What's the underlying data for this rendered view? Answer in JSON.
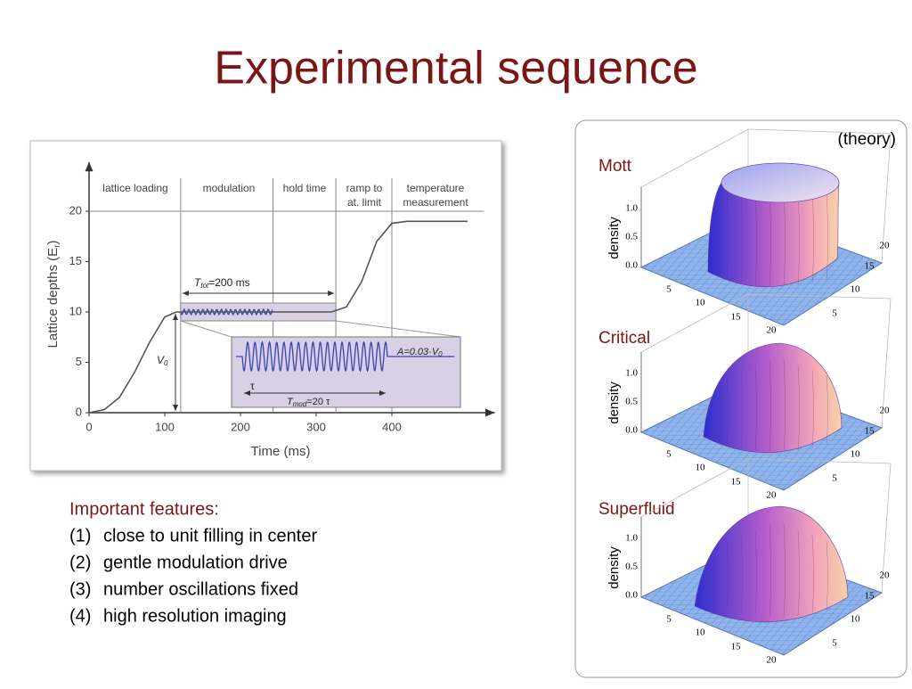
{
  "title": "Experimental sequence",
  "features": {
    "heading": "Important features:",
    "items": [
      {
        "number": "(1)",
        "text": "close to unit filling in center"
      },
      {
        "number": "(2)",
        "text": "gentle modulation drive"
      },
      {
        "number": "(3)",
        "text": "number oscillations fixed"
      },
      {
        "number": "(4)",
        "text": "high resolution imaging"
      }
    ]
  },
  "chart_data": {
    "type": "line",
    "x_label": "Time (ms)",
    "y_label": {
      "text": "Lattice depths (E",
      "sub": "r",
      "rest": ")"
    },
    "x": [
      0,
      20,
      40,
      60,
      80,
      100,
      115,
      200,
      320,
      340,
      360,
      380,
      400,
      420,
      500
    ],
    "values": [
      0,
      0.3,
      1.5,
      4,
      7,
      9.5,
      10,
      10,
      10,
      10.5,
      13,
      17,
      18.8,
      19,
      19
    ],
    "color": "#555555",
    "xlim": [
      0,
      510
    ],
    "ylim": [
      0,
      24
    ],
    "xticks": [
      0,
      100,
      200,
      300,
      400
    ],
    "yticks": [
      0,
      5,
      10,
      15,
      20
    ],
    "phase_boundaries": [
      121,
      243,
      326,
      400
    ],
    "phases": [
      [
        "lattice loading"
      ],
      [
        "modulation"
      ],
      [
        "hold time"
      ],
      [
        "ramp to",
        "at. limit"
      ],
      [
        "temperature",
        "measurement"
      ]
    ],
    "annotations": {
      "t_tot": {
        "symbol": "T",
        "sub": "tot",
        "rest": "=200 ms"
      },
      "v0": {
        "symbol": "V",
        "sub": "0"
      },
      "amplitude": {
        "text": "A=0.03·V",
        "sub": "0"
      },
      "tau": "τ",
      "t_mod": {
        "symbol": "T",
        "sub": "mod",
        "rest": "=20 τ"
      }
    }
  },
  "theory_panel": {
    "note": "(theory)",
    "plots": [
      {
        "label": "Mott",
        "axis_label": "density",
        "zticks": [
          "1.0",
          "0.5",
          "0.0"
        ],
        "front_ticks": [
          "5",
          "10",
          "15",
          "20"
        ],
        "side_ticks": [
          "20",
          "15",
          "10",
          "5"
        ]
      },
      {
        "label": "Critical",
        "axis_label": "density",
        "zticks": [
          "1.0",
          "0.5",
          "0.0"
        ],
        "front_ticks": [
          "5",
          "10",
          "15",
          "20"
        ],
        "side_ticks": [
          "20",
          "15",
          "10",
          "5"
        ]
      },
      {
        "label": "Superfluid",
        "axis_label": "density",
        "zticks": [
          "1.0",
          "0.5",
          "0.0"
        ],
        "front_ticks": [
          "5",
          "10",
          "15",
          "20"
        ],
        "side_ticks": [
          "20",
          "15",
          "10",
          "5"
        ]
      }
    ]
  }
}
